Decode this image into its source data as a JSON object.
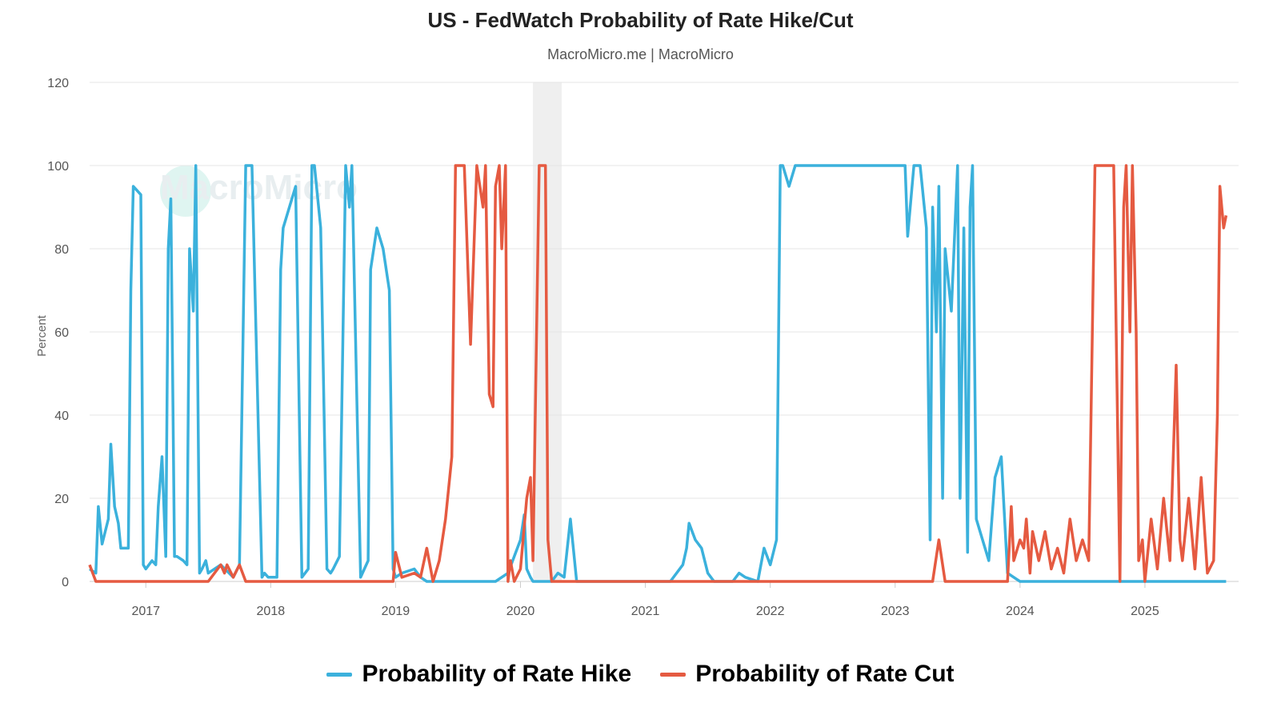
{
  "chart_data": {
    "type": "line",
    "title": "US - FedWatch Probability of Rate Hike/Cut",
    "subtitle": "MacroMicro.me | MacroMicro",
    "watermark": "MacroMicro",
    "ylabel": "Percent",
    "xlabel": "",
    "ylim": [
      0,
      120
    ],
    "yticks": [
      0,
      20,
      40,
      60,
      80,
      100,
      120
    ],
    "xlim": [
      2016.55,
      2025.75
    ],
    "xticks": [
      2017,
      2018,
      2019,
      2020,
      2021,
      2022,
      2023,
      2024,
      2025
    ],
    "xtick_labels": [
      "2017",
      "2018",
      "2019",
      "2020",
      "2021",
      "2022",
      "2023",
      "2024",
      "2025"
    ],
    "grid": true,
    "legend_position": "bottom-center",
    "shaded_regions": [
      {
        "x0": 2020.1,
        "x1": 2020.33
      }
    ],
    "series": [
      {
        "name": "Probability of Rate Hike",
        "color": "#3bb1dc",
        "x": [
          2016.55,
          2016.6,
          2016.62,
          2016.65,
          2016.7,
          2016.72,
          2016.75,
          2016.78,
          2016.8,
          2016.83,
          2016.86,
          2016.88,
          2016.9,
          2016.93,
          2016.96,
          2016.98,
          2017.0,
          2017.05,
          2017.08,
          2017.1,
          2017.13,
          2017.16,
          2017.18,
          2017.2,
          2017.23,
          2017.25,
          2017.3,
          2017.33,
          2017.35,
          2017.38,
          2017.4,
          2017.43,
          2017.45,
          2017.48,
          2017.5,
          2017.6,
          2017.7,
          2017.75,
          2017.8,
          2017.83,
          2017.85,
          2017.93,
          2017.95,
          2017.98,
          2018.05,
          2018.08,
          2018.1,
          2018.15,
          2018.2,
          2018.25,
          2018.3,
          2018.33,
          2018.35,
          2018.4,
          2018.45,
          2018.48,
          2018.5,
          2018.55,
          2018.6,
          2018.63,
          2018.65,
          2018.72,
          2018.75,
          2018.78,
          2018.8,
          2018.85,
          2018.9,
          2018.95,
          2018.98,
          2019.0,
          2019.05,
          2019.15,
          2019.2,
          2019.25,
          2019.3,
          2019.4,
          2019.6,
          2019.8,
          2019.9,
          2019.95,
          2020.0,
          2020.03,
          2020.05,
          2020.08,
          2020.1,
          2020.15,
          2020.2,
          2020.25,
          2020.3,
          2020.35,
          2020.4,
          2020.45,
          2020.5,
          2020.8,
          2020.9,
          2021.0,
          2021.2,
          2021.3,
          2021.33,
          2021.35,
          2021.4,
          2021.45,
          2021.5,
          2021.55,
          2021.7,
          2021.75,
          2021.8,
          2021.9,
          2021.95,
          2022.0,
          2022.05,
          2022.08,
          2022.1,
          2022.15,
          2022.2,
          2022.4,
          2022.6,
          2022.8,
          2023.0,
          2023.05,
          2023.08,
          2023.1,
          2023.15,
          2023.2,
          2023.25,
          2023.28,
          2023.3,
          2023.33,
          2023.35,
          2023.38,
          2023.4,
          2023.45,
          2023.5,
          2023.52,
          2023.55,
          2023.58,
          2023.6,
          2023.62,
          2023.65,
          2023.7,
          2023.75,
          2023.8,
          2023.85,
          2023.9,
          2023.95,
          2024.0,
          2024.3,
          2024.6,
          2024.9,
          2025.2,
          2025.5,
          2025.65
        ],
        "y": [
          3,
          2,
          18,
          9,
          15,
          33,
          18,
          14,
          8,
          8,
          8,
          70,
          95,
          94,
          93,
          4,
          3,
          5,
          4,
          18,
          30,
          6,
          80,
          92,
          6,
          6,
          5,
          4,
          80,
          65,
          100,
          2,
          3,
          5,
          2,
          4,
          1,
          4,
          100,
          100,
          100,
          1,
          2,
          1,
          1,
          75,
          85,
          90,
          95,
          1,
          3,
          100,
          100,
          85,
          3,
          2,
          3,
          6,
          100,
          90,
          100,
          1,
          3,
          5,
          75,
          85,
          80,
          70,
          3,
          1,
          2,
          3,
          1,
          0,
          0,
          0,
          0,
          0,
          2,
          6,
          10,
          16,
          3,
          1,
          0,
          0,
          0,
          0,
          2,
          1,
          15,
          0,
          0,
          0,
          0,
          0,
          0,
          4,
          8,
          14,
          10,
          8,
          2,
          0,
          0,
          2,
          1,
          0,
          8,
          4,
          10,
          100,
          100,
          95,
          100,
          100,
          100,
          100,
          100,
          100,
          100,
          83,
          100,
          100,
          85,
          10,
          90,
          60,
          95,
          20,
          80,
          65,
          100,
          20,
          85,
          7,
          90,
          100,
          15,
          10,
          5,
          25,
          30,
          2,
          1,
          0,
          0,
          0,
          0,
          0,
          0,
          0
        ]
      },
      {
        "name": "Probability of Rate Cut",
        "color": "#e55a41",
        "x": [
          2016.55,
          2016.6,
          2017.0,
          2017.5,
          2017.6,
          2017.63,
          2017.65,
          2017.7,
          2017.75,
          2017.8,
          2018.0,
          2018.5,
          2018.98,
          2019.0,
          2019.05,
          2019.15,
          2019.2,
          2019.25,
          2019.3,
          2019.35,
          2019.4,
          2019.45,
          2019.48,
          2019.5,
          2019.52,
          2019.55,
          2019.6,
          2019.65,
          2019.7,
          2019.72,
          2019.75,
          2019.78,
          2019.8,
          2019.83,
          2019.85,
          2019.88,
          2019.9,
          2019.92,
          2019.95,
          2020.0,
          2020.05,
          2020.08,
          2020.1,
          2020.15,
          2020.18,
          2020.2,
          2020.22,
          2020.25,
          2020.3,
          2020.5,
          2021.0,
          2022.0,
          2023.0,
          2023.3,
          2023.35,
          2023.4,
          2023.6,
          2023.9,
          2023.93,
          2023.95,
          2024.0,
          2024.03,
          2024.05,
          2024.08,
          2024.1,
          2024.15,
          2024.2,
          2024.25,
          2024.3,
          2024.35,
          2024.4,
          2024.45,
          2024.5,
          2024.55,
          2024.6,
          2024.65,
          2024.7,
          2024.75,
          2024.8,
          2024.83,
          2024.85,
          2024.88,
          2024.9,
          2024.93,
          2024.95,
          2024.98,
          2025.0,
          2025.05,
          2025.1,
          2025.15,
          2025.2,
          2025.25,
          2025.28,
          2025.3,
          2025.35,
          2025.4,
          2025.45,
          2025.5,
          2025.55,
          2025.58,
          2025.6,
          2025.63,
          2025.65
        ],
        "y": [
          4,
          0,
          0,
          0,
          4,
          2,
          4,
          1,
          4,
          0,
          0,
          0,
          0,
          7,
          1,
          2,
          1,
          8,
          0,
          5,
          15,
          30,
          100,
          100,
          100,
          100,
          57,
          100,
          90,
          100,
          45,
          42,
          95,
          100,
          80,
          100,
          0,
          5,
          0,
          3,
          20,
          25,
          5,
          100,
          100,
          100,
          10,
          0,
          0,
          0,
          0,
          0,
          0,
          0,
          10,
          0,
          0,
          0,
          18,
          5,
          10,
          8,
          15,
          2,
          12,
          5,
          12,
          3,
          8,
          2,
          15,
          5,
          10,
          5,
          100,
          100,
          100,
          100,
          0,
          90,
          100,
          60,
          100,
          60,
          5,
          10,
          0,
          15,
          3,
          20,
          5,
          52,
          10,
          5,
          20,
          3,
          25,
          2,
          5,
          40,
          95,
          85,
          88
        ]
      }
    ]
  }
}
